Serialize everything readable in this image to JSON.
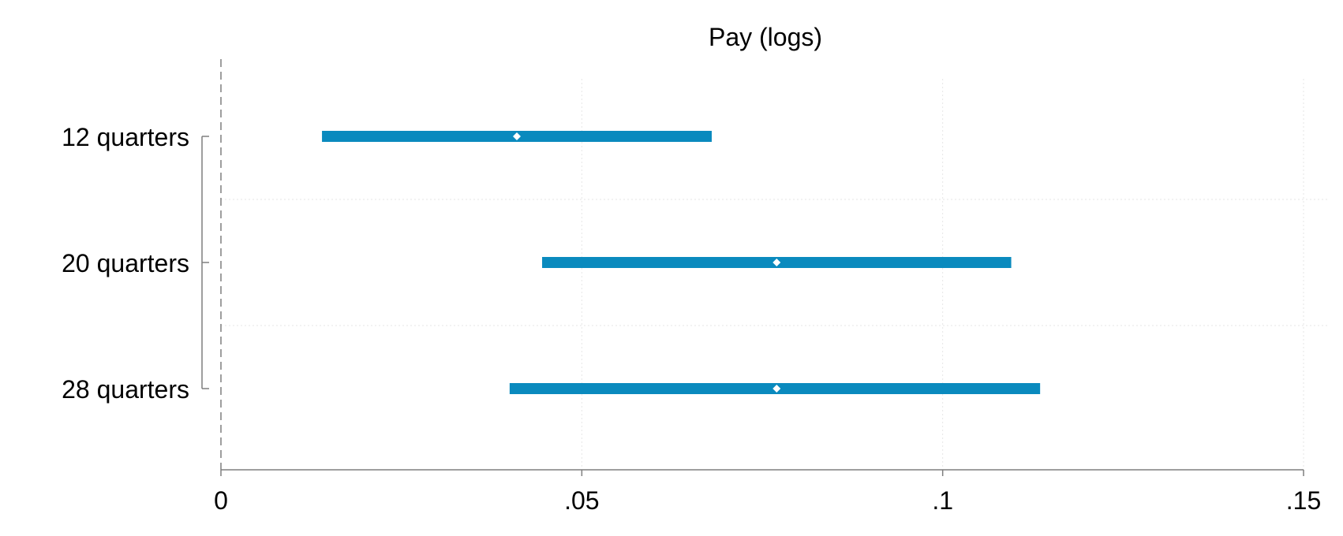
{
  "chart_data": {
    "type": "coefficient-plot",
    "title": "Pay (logs)",
    "xlabel": "",
    "ylabel": "",
    "xlim": [
      0,
      0.15
    ],
    "x_ticks": [
      {
        "value": 0,
        "label": "0"
      },
      {
        "value": 0.05,
        "label": ".05"
      },
      {
        "value": 0.1,
        "label": ".1"
      },
      {
        "value": 0.15,
        "label": ".15"
      }
    ],
    "reference_line": {
      "value": 0,
      "style": "dashed"
    },
    "grid": true,
    "colors": {
      "interval": "#0a8abe",
      "marker": "#ffffff",
      "axis": "#7f7f7f",
      "grid": "#e6e6e6",
      "text": "#000000"
    },
    "points": [
      {
        "label": "12 quarters",
        "estimate": 0.041,
        "ci_low": 0.014,
        "ci_high": 0.068
      },
      {
        "label": "20 quarters",
        "estimate": 0.077,
        "ci_low": 0.0445,
        "ci_high": 0.1095
      },
      {
        "label": "28 quarters",
        "estimate": 0.077,
        "ci_low": 0.04,
        "ci_high": 0.1135
      }
    ]
  }
}
